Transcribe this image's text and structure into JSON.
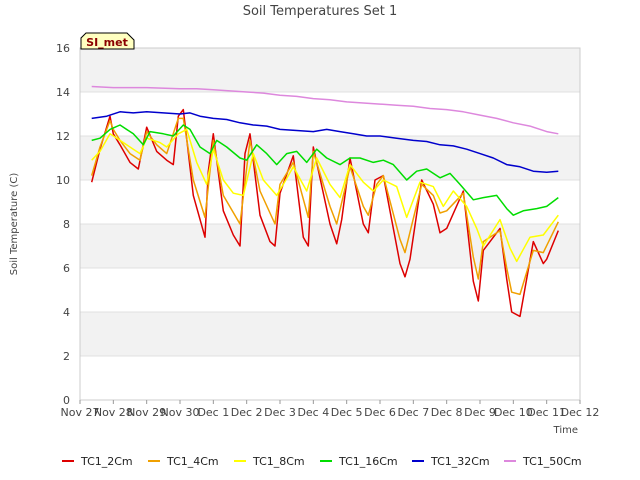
{
  "chart_data": {
    "type": "line",
    "title": "Soil Temperatures Set 1",
    "xlabel": "Time",
    "ylabel": "Soil Temperature (C)",
    "ylim": [
      0,
      16
    ],
    "yticks": [
      0,
      2,
      4,
      6,
      8,
      10,
      12,
      14,
      16
    ],
    "xlim": [
      0,
      15
    ],
    "xtick_labels": [
      "Nov 27",
      "Nov 28",
      "Nov 29",
      "Nov 30",
      "Dec 1",
      "Dec 2",
      "Dec 3",
      "Dec 4",
      "Dec 5",
      "Dec 6",
      "Dec 7",
      "Dec 8",
      "Dec 9",
      "Dec 10",
      "Dec 11",
      "Dec 12"
    ],
    "grid": "horizontal bands",
    "annotation": "SI_met",
    "legend_position": "bottom",
    "series": [
      {
        "name": "TC1_2Cm",
        "color": "#dd0000",
        "x": [
          0.35,
          0.6,
          0.9,
          1.0,
          1.2,
          1.5,
          1.75,
          2.0,
          2.3,
          2.6,
          2.8,
          2.95,
          3.1,
          3.4,
          3.75,
          3.85,
          4.0,
          4.3,
          4.6,
          4.8,
          4.95,
          5.1,
          5.4,
          5.7,
          5.85,
          6.0,
          6.4,
          6.7,
          6.85,
          7.0,
          7.5,
          7.7,
          7.85,
          8.1,
          8.5,
          8.65,
          8.85,
          9.1,
          9.6,
          9.75,
          9.9,
          10.25,
          10.6,
          10.8,
          11.0,
          11.5,
          11.8,
          11.95,
          12.1,
          12.6,
          12.8,
          12.95,
          13.2,
          13.6,
          13.9,
          14.0,
          14.35
        ],
        "y": [
          9.9,
          11.4,
          12.9,
          12.1,
          11.6,
          10.8,
          10.5,
          12.4,
          11.3,
          10.9,
          10.7,
          12.9,
          13.2,
          9.3,
          7.4,
          10.4,
          12.1,
          8.6,
          7.5,
          7.0,
          11.2,
          12.1,
          8.4,
          7.2,
          7.0,
          9.4,
          11.1,
          7.4,
          7.0,
          11.5,
          8.0,
          7.1,
          8.2,
          11.0,
          8.0,
          7.6,
          10.0,
          10.2,
          6.2,
          5.6,
          6.4,
          10.0,
          8.9,
          7.6,
          7.8,
          9.5,
          5.4,
          4.5,
          6.8,
          7.8,
          5.5,
          4.0,
          3.8,
          7.2,
          6.2,
          6.4,
          7.7
        ]
      },
      {
        "name": "TC1_4Cm",
        "color": "#f0a000",
        "x": [
          0.35,
          0.6,
          0.9,
          1.0,
          1.2,
          1.5,
          1.8,
          2.0,
          2.3,
          2.6,
          2.95,
          3.1,
          3.4,
          3.75,
          4.0,
          4.3,
          4.8,
          5.1,
          5.4,
          5.85,
          6.0,
          6.4,
          6.85,
          7.0,
          7.5,
          7.7,
          8.1,
          8.5,
          8.65,
          8.9,
          9.1,
          9.6,
          9.75,
          10.25,
          10.6,
          10.8,
          11.0,
          11.5,
          11.8,
          11.95,
          12.1,
          12.6,
          12.8,
          12.95,
          13.2,
          13.6,
          13.9,
          14.35
        ],
        "y": [
          10.2,
          11.5,
          12.7,
          12.3,
          11.8,
          11.2,
          10.9,
          12.2,
          11.6,
          11.2,
          12.8,
          12.8,
          10.0,
          8.3,
          11.8,
          9.3,
          8.0,
          11.8,
          9.5,
          8.0,
          9.8,
          10.8,
          8.3,
          11.3,
          8.8,
          8.0,
          10.6,
          8.8,
          8.4,
          9.8,
          10.2,
          7.3,
          6.7,
          9.8,
          9.3,
          8.5,
          8.6,
          9.4,
          6.5,
          5.5,
          7.2,
          7.7,
          6.0,
          4.9,
          4.8,
          6.8,
          6.7,
          8.1
        ]
      },
      {
        "name": "TC1_8Cm",
        "color": "#ffff00",
        "x": [
          0.35,
          0.6,
          0.9,
          1.2,
          1.6,
          1.8,
          2.0,
          2.4,
          2.6,
          2.95,
          3.2,
          3.5,
          3.8,
          4.0,
          4.3,
          4.6,
          4.9,
          5.2,
          5.5,
          5.9,
          6.1,
          6.4,
          6.8,
          7.1,
          7.5,
          7.8,
          8.1,
          8.5,
          8.8,
          9.1,
          9.5,
          9.8,
          10.2,
          10.6,
          10.9,
          11.2,
          11.6,
          11.9,
          12.1,
          12.6,
          12.9,
          13.1,
          13.5,
          13.9,
          14.35
        ],
        "y": [
          10.9,
          11.3,
          12.1,
          11.8,
          11.4,
          11.2,
          11.9,
          11.7,
          11.5,
          12.1,
          12.3,
          10.8,
          9.8,
          11.4,
          10.0,
          9.4,
          9.3,
          11.2,
          10.0,
          9.3,
          9.8,
          10.6,
          9.5,
          11.0,
          9.8,
          9.2,
          10.7,
          9.9,
          9.5,
          10.0,
          9.7,
          8.3,
          9.9,
          9.7,
          8.8,
          9.5,
          8.8,
          7.8,
          7.0,
          8.2,
          6.9,
          6.3,
          7.4,
          7.5,
          8.4
        ]
      },
      {
        "name": "TC1_16Cm",
        "color": "#00dd00",
        "x": [
          0.35,
          0.6,
          0.9,
          1.2,
          1.6,
          1.9,
          2.1,
          2.5,
          2.8,
          3.1,
          3.3,
          3.6,
          3.9,
          4.1,
          4.4,
          4.8,
          5.0,
          5.3,
          5.6,
          5.9,
          6.2,
          6.5,
          6.8,
          7.1,
          7.4,
          7.8,
          8.1,
          8.4,
          8.8,
          9.1,
          9.4,
          9.8,
          10.1,
          10.4,
          10.8,
          11.1,
          11.4,
          11.8,
          12.1,
          12.5,
          12.8,
          13.0,
          13.3,
          13.7,
          14.0,
          14.35
        ],
        "y": [
          11.8,
          11.9,
          12.3,
          12.5,
          12.1,
          11.6,
          12.2,
          12.1,
          12.0,
          12.5,
          12.3,
          11.5,
          11.2,
          11.8,
          11.5,
          11.0,
          10.9,
          11.6,
          11.2,
          10.7,
          11.2,
          11.3,
          10.8,
          11.4,
          11.0,
          10.7,
          11.0,
          11.0,
          10.8,
          10.9,
          10.7,
          10.0,
          10.4,
          10.5,
          10.1,
          10.3,
          9.8,
          9.1,
          9.2,
          9.3,
          8.7,
          8.4,
          8.6,
          8.7,
          8.8,
          9.2
        ]
      },
      {
        "name": "TC1_32Cm",
        "color": "#0000cc",
        "x": [
          0.35,
          0.8,
          1.2,
          1.6,
          2.0,
          2.5,
          3.0,
          3.3,
          3.6,
          4.0,
          4.4,
          4.8,
          5.2,
          5.6,
          6.0,
          6.5,
          7.0,
          7.4,
          7.8,
          8.2,
          8.6,
          9.0,
          9.5,
          10.0,
          10.4,
          10.8,
          11.2,
          11.6,
          12.0,
          12.4,
          12.8,
          13.2,
          13.6,
          14.0,
          14.35
        ],
        "y": [
          12.8,
          12.9,
          13.1,
          13.05,
          13.1,
          13.05,
          13.0,
          13.05,
          12.9,
          12.8,
          12.75,
          12.6,
          12.5,
          12.45,
          12.3,
          12.25,
          12.2,
          12.3,
          12.2,
          12.1,
          12.0,
          12.0,
          11.9,
          11.8,
          11.75,
          11.6,
          11.55,
          11.4,
          11.2,
          11.0,
          10.7,
          10.6,
          10.4,
          10.35,
          10.4
        ]
      },
      {
        "name": "TC1_50Cm",
        "color": "#dd88dd",
        "x": [
          0.35,
          1.0,
          2.0,
          3.0,
          3.5,
          4.0,
          5.0,
          5.5,
          6.0,
          6.5,
          7.0,
          7.5,
          8.0,
          8.5,
          9.0,
          9.5,
          10.0,
          10.5,
          11.0,
          11.5,
          12.0,
          12.5,
          13.0,
          13.5,
          14.0,
          14.35
        ],
        "y": [
          14.25,
          14.2,
          14.2,
          14.15,
          14.15,
          14.1,
          14.0,
          13.95,
          13.85,
          13.8,
          13.7,
          13.65,
          13.55,
          13.5,
          13.45,
          13.4,
          13.35,
          13.25,
          13.2,
          13.1,
          12.95,
          12.8,
          12.6,
          12.45,
          12.2,
          12.1
        ]
      }
    ]
  }
}
